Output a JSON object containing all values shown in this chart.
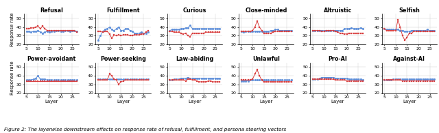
{
  "titles_row1": [
    "Refusal",
    "Fulfillment",
    "Curious",
    "Close-minded",
    "Altruistic",
    "Selfish"
  ],
  "titles_row2": [
    "Power-avoidant",
    "Power-seeking",
    "Law-abiding",
    "Unlawful",
    "Pro-AI",
    "Against-AI"
  ],
  "x": [
    5,
    6,
    7,
    8,
    9,
    10,
    11,
    12,
    13,
    14,
    15,
    16,
    17,
    18,
    19,
    20,
    21,
    22,
    23,
    24,
    25,
    26,
    27
  ],
  "ylabel": "Response rate",
  "xlabel": "Layer",
  "ylim": [
    20,
    55
  ],
  "yticks": [
    20,
    30,
    40,
    50
  ],
  "xticks": [
    5,
    10,
    15,
    20,
    25
  ],
  "blue_color": "#5B8DD9",
  "red_color": "#D94040",
  "linewidth": 0.7,
  "markersize": 2.0,
  "markeredgewidth": 0.2,
  "title_fontsize": 5.8,
  "label_fontsize": 5.0,
  "tick_fontsize": 4.5,
  "caption": "Figure 2: The layerwise downstream effects on response rate of refusal, fulfillment, and persona steering vectors",
  "caption_fontsize": 5.2,
  "series": {
    "Refusal": {
      "blue": [
        35,
        35,
        34,
        35,
        35,
        36,
        34,
        33,
        34,
        35,
        34,
        35,
        35,
        36,
        36,
        35,
        35,
        36,
        36,
        35,
        36,
        36,
        35
      ],
      "red": [
        38,
        38,
        39,
        39,
        40,
        41,
        38,
        41,
        38,
        36,
        36,
        36,
        36,
        36,
        36,
        36,
        36,
        36,
        36,
        36,
        36,
        36,
        34
      ]
    },
    "Fulfillment": {
      "blue": [
        25,
        30,
        35,
        37,
        38,
        40,
        37,
        36,
        38,
        40,
        36,
        36,
        38,
        38,
        36,
        35,
        33,
        33,
        33,
        34,
        33,
        33,
        34
      ],
      "red": [
        35,
        35,
        34,
        35,
        35,
        32,
        27,
        31,
        30,
        31,
        30,
        31,
        31,
        31,
        30,
        30,
        31,
        31,
        31,
        32,
        32,
        34,
        36
      ]
    },
    "Curious": {
      "blue": [
        36,
        37,
        37,
        37,
        37,
        38,
        38,
        39,
        39,
        42,
        38,
        38,
        38,
        38,
        38,
        38,
        38,
        38,
        38,
        38,
        38,
        38,
        38
      ],
      "red": [
        35,
        35,
        34,
        34,
        34,
        33,
        32,
        33,
        30,
        29,
        33,
        33,
        33,
        33,
        33,
        33,
        34,
        34,
        34,
        34,
        34,
        34,
        34
      ]
    },
    "Close-minded": {
      "blue": [
        35,
        34,
        35,
        35,
        35,
        35,
        35,
        35,
        35,
        35,
        35,
        35,
        35,
        36,
        36,
        37,
        37,
        36,
        36,
        36,
        36,
        36,
        36
      ],
      "red": [
        35,
        35,
        35,
        35,
        35,
        36,
        40,
        47,
        40,
        36,
        33,
        33,
        33,
        33,
        34,
        35,
        35,
        35,
        35,
        35,
        35,
        35,
        35
      ]
    },
    "Altruistic": {
      "blue": [
        36,
        36,
        36,
        36,
        36,
        36,
        36,
        36,
        36,
        36,
        36,
        36,
        36,
        36,
        38,
        38,
        38,
        39,
        38,
        38,
        38,
        39,
        38
      ],
      "red": [
        36,
        36,
        36,
        36,
        35,
        35,
        36,
        36,
        36,
        36,
        35,
        34,
        33,
        33,
        32,
        32,
        33,
        33,
        33,
        33,
        33,
        33,
        33
      ]
    },
    "Selfish": {
      "blue": [
        38,
        37,
        37,
        37,
        37,
        37,
        37,
        36,
        36,
        35,
        35,
        35,
        36,
        36,
        36,
        36,
        36,
        36,
        36,
        37,
        36,
        36,
        36
      ],
      "red": [
        38,
        36,
        36,
        36,
        36,
        36,
        48,
        40,
        30,
        25,
        28,
        33,
        33,
        35,
        35,
        35,
        35,
        35,
        35,
        35,
        35,
        35,
        35
      ]
    },
    "Power-avoidant": {
      "blue": [
        35,
        35,
        35,
        36,
        37,
        40,
        36,
        36,
        36,
        35,
        35,
        35,
        35,
        35,
        35,
        35,
        35,
        35,
        35,
        35,
        35,
        35,
        35
      ],
      "red": [
        34,
        34,
        34,
        34,
        34,
        34,
        34,
        34,
        34,
        34,
        34,
        34,
        34,
        34,
        34,
        34,
        34,
        34,
        34,
        34,
        34,
        34,
        34
      ]
    },
    "Power-seeking": {
      "blue": [
        36,
        36,
        36,
        36,
        36,
        36,
        36,
        36,
        36,
        36,
        36,
        36,
        36,
        36,
        36,
        36,
        36,
        36,
        36,
        36,
        36,
        36,
        36
      ],
      "red": [
        35,
        35,
        35,
        35,
        35,
        42,
        40,
        36,
        35,
        30,
        33,
        34,
        35,
        35,
        35,
        35,
        35,
        35,
        35,
        35,
        35,
        35,
        35
      ]
    },
    "Law-abiding": {
      "blue": [
        35,
        35,
        36,
        36,
        36,
        37,
        37,
        37,
        38,
        37,
        37,
        37,
        37,
        37,
        37,
        37,
        37,
        37,
        37,
        37,
        37,
        37,
        37
      ],
      "red": [
        35,
        35,
        35,
        35,
        35,
        35,
        35,
        34,
        36,
        36,
        35,
        35,
        34,
        33,
        33,
        33,
        33,
        34,
        34,
        33,
        33,
        33,
        33
      ]
    },
    "Unlawful": {
      "blue": [
        34,
        34,
        34,
        34,
        35,
        35,
        35,
        35,
        35,
        35,
        35,
        35,
        35,
        35,
        35,
        35,
        35,
        35,
        35,
        35,
        35,
        35,
        35
      ],
      "red": [
        35,
        35,
        35,
        35,
        35,
        36,
        42,
        47,
        40,
        35,
        33,
        33,
        33,
        33,
        33,
        33,
        33,
        33,
        33,
        33,
        33,
        33,
        33
      ]
    },
    "Pro-AI": {
      "blue": [
        36,
        36,
        36,
        37,
        38,
        38,
        38,
        38,
        38,
        38,
        37,
        37,
        37,
        37,
        37,
        37,
        36,
        36,
        36,
        36,
        36,
        36,
        35
      ],
      "red": [
        36,
        36,
        36,
        36,
        36,
        36,
        36,
        36,
        36,
        36,
        35,
        35,
        35,
        35,
        35,
        34,
        34,
        34,
        34,
        34,
        34,
        34,
        34
      ]
    },
    "Against-AI": {
      "blue": [
        35,
        35,
        35,
        35,
        36,
        36,
        36,
        36,
        36,
        36,
        36,
        36,
        36,
        36,
        36,
        36,
        36,
        36,
        36,
        36,
        36,
        36,
        36
      ],
      "red": [
        35,
        35,
        35,
        35,
        35,
        35,
        35,
        35,
        34,
        34,
        34,
        34,
        34,
        34,
        34,
        34,
        34,
        34,
        34,
        34,
        34,
        34,
        34
      ]
    }
  }
}
